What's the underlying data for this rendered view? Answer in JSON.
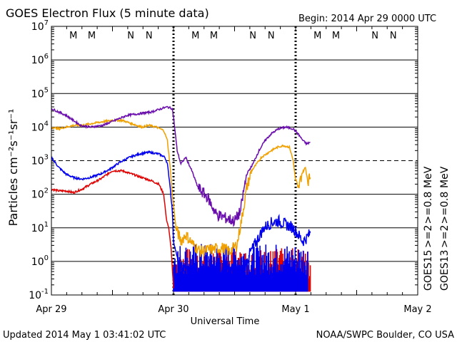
{
  "header": {
    "title": "GOES Electron Flux (5 minute data)",
    "begin": "Begin: 2014 Apr 29 0000 UTC"
  },
  "footer": {
    "updated": "Updated 2014 May  1 03:41:02 UTC",
    "credit": "NOAA/SWPC Boulder, CO USA"
  },
  "chart_data": {
    "type": "line",
    "title": "GOES Electron Flux (5 minute data)",
    "xlabel": "Universal Time",
    "ylabel": "Particles cm⁻²s⁻¹sr⁻¹",
    "yscale": "log",
    "ylim_exp": [
      -1,
      7
    ],
    "xlim_days": [
      0,
      3
    ],
    "x_ticks": [
      {
        "day": 0,
        "label": "Apr 29"
      },
      {
        "day": 1,
        "label": "Apr 30"
      },
      {
        "day": 2,
        "label": "May 1"
      },
      {
        "day": 3,
        "label": "May 2"
      }
    ],
    "y_ticks": [
      {
        "exp": 7,
        "base": "10",
        "sup": "7"
      },
      {
        "exp": 6,
        "base": "10",
        "sup": "6"
      },
      {
        "exp": 5,
        "base": "10",
        "sup": "5"
      },
      {
        "exp": 4,
        "base": "10",
        "sup": "4"
      },
      {
        "exp": 3,
        "base": "10",
        "sup": "3"
      },
      {
        "exp": 2,
        "base": "10",
        "sup": "2"
      },
      {
        "exp": 1,
        "base": "10",
        "sup": "1"
      },
      {
        "exp": 0,
        "base": "10",
        "sup": "0"
      },
      {
        "exp": -1,
        "base": "10",
        "sup": "-1"
      }
    ],
    "dashed_threshold_exp": 3,
    "day_dividers": [
      1,
      2
    ],
    "mn_markers": [
      {
        "day": 0.18,
        "label": "M",
        "color": "#e00000"
      },
      {
        "day": 0.33,
        "label": "M",
        "color": "#0000ee"
      },
      {
        "day": 0.65,
        "label": "N",
        "color": "#e00000"
      },
      {
        "day": 0.8,
        "label": "N",
        "color": "#0000ee"
      },
      {
        "day": 1.18,
        "label": "M",
        "color": "#e00000"
      },
      {
        "day": 1.33,
        "label": "M",
        "color": "#0000ee"
      },
      {
        "day": 1.65,
        "label": "N",
        "color": "#e00000"
      },
      {
        "day": 1.8,
        "label": "N",
        "color": "#0000ee"
      },
      {
        "day": 2.18,
        "label": "M",
        "color": "#e00000"
      },
      {
        "day": 2.33,
        "label": "M",
        "color": "#0000ee"
      },
      {
        "day": 2.65,
        "label": "N",
        "color": "#e00000"
      },
      {
        "day": 2.8,
        "label": "N",
        "color": "#0000ee"
      }
    ],
    "legend": {
      "goes15": "GOES15",
      "goes13": "GOES13",
      "col15": [
        {
          "text": ">=2",
          "color": "#0000ee"
        },
        {
          "text": ">=0.8",
          "color": "#6a0dad"
        },
        {
          "text": "MeV",
          "color": "#000000"
        }
      ],
      "col13": [
        {
          "text": ">=2",
          "color": "#e00000"
        },
        {
          "text": ">=0.8",
          "color": "#f0a000"
        },
        {
          "text": "MeV",
          "color": "#000000"
        }
      ]
    },
    "series": [
      {
        "name": "GOES15 >=0.8 MeV",
        "color": "#6a0dad",
        "kind": "line",
        "points": [
          [
            0,
            4.55
          ],
          [
            0.06,
            4.45
          ],
          [
            0.12,
            4.35
          ],
          [
            0.18,
            4.2
          ],
          [
            0.24,
            4.05
          ],
          [
            0.32,
            4.0
          ],
          [
            0.42,
            4.05
          ],
          [
            0.52,
            4.2
          ],
          [
            0.62,
            4.35
          ],
          [
            0.72,
            4.4
          ],
          [
            0.82,
            4.45
          ],
          [
            0.9,
            4.55
          ],
          [
            0.95,
            4.6
          ],
          [
            0.99,
            4.55
          ],
          [
            1.0,
            4.3
          ],
          [
            1.03,
            3.3
          ],
          [
            1.06,
            2.9
          ],
          [
            1.1,
            3.1
          ],
          [
            1.15,
            2.7
          ],
          [
            1.2,
            2.2
          ],
          [
            1.28,
            1.9
          ],
          [
            1.35,
            1.4
          ],
          [
            1.42,
            1.3
          ],
          [
            1.5,
            1.2
          ],
          [
            1.55,
            1.5
          ],
          [
            1.57,
            2.0
          ],
          [
            1.6,
            2.6
          ],
          [
            1.65,
            2.9
          ],
          [
            1.7,
            3.3
          ],
          [
            1.75,
            3.6
          ],
          [
            1.8,
            3.8
          ],
          [
            1.86,
            3.95
          ],
          [
            1.92,
            4.0
          ],
          [
            1.98,
            3.95
          ],
          [
            2.02,
            3.8
          ],
          [
            2.06,
            3.6
          ],
          [
            2.09,
            3.5
          ],
          [
            2.12,
            3.55
          ]
        ]
      },
      {
        "name": "GOES13 >=0.8 MeV",
        "color": "#f0a000",
        "kind": "line",
        "points": [
          [
            0,
            4.0
          ],
          [
            0.06,
            3.95
          ],
          [
            0.12,
            4.0
          ],
          [
            0.18,
            4.05
          ],
          [
            0.25,
            4.05
          ],
          [
            0.32,
            4.1
          ],
          [
            0.4,
            4.15
          ],
          [
            0.5,
            4.2
          ],
          [
            0.58,
            4.2
          ],
          [
            0.66,
            4.1
          ],
          [
            0.74,
            4.0
          ],
          [
            0.8,
            4.05
          ],
          [
            0.86,
            4.0
          ],
          [
            0.92,
            3.9
          ],
          [
            0.95,
            3.6
          ],
          [
            0.97,
            2.9
          ],
          [
            0.99,
            2.0
          ],
          [
            1.02,
            1.0
          ],
          [
            1.06,
            0.6
          ],
          [
            1.1,
            0.8
          ],
          [
            1.16,
            0.5
          ],
          [
            1.22,
            0.3
          ],
          [
            1.3,
            0.35
          ],
          [
            1.4,
            0.4
          ],
          [
            1.46,
            0.3
          ],
          [
            1.52,
            0.5
          ],
          [
            1.56,
            1.3
          ],
          [
            1.6,
            2.2
          ],
          [
            1.64,
            2.7
          ],
          [
            1.68,
            2.9
          ],
          [
            1.72,
            3.1
          ],
          [
            1.76,
            3.2
          ],
          [
            1.8,
            3.3
          ],
          [
            1.85,
            3.4
          ],
          [
            1.9,
            3.45
          ],
          [
            1.95,
            3.4
          ],
          [
            1.98,
            3.0
          ],
          [
            2.0,
            2.4
          ],
          [
            2.02,
            2.1
          ],
          [
            2.05,
            2.6
          ],
          [
            2.08,
            2.8
          ],
          [
            2.1,
            2.4
          ],
          [
            2.12,
            2.5
          ]
        ]
      },
      {
        "name": "GOES15 >=2 MeV",
        "color": "#0000ee",
        "kind": "line",
        "points": [
          [
            0,
            3.1
          ],
          [
            0.06,
            2.8
          ],
          [
            0.12,
            2.6
          ],
          [
            0.18,
            2.5
          ],
          [
            0.25,
            2.45
          ],
          [
            0.32,
            2.5
          ],
          [
            0.4,
            2.6
          ],
          [
            0.48,
            2.75
          ],
          [
            0.56,
            2.95
          ],
          [
            0.64,
            3.1
          ],
          [
            0.72,
            3.2
          ],
          [
            0.8,
            3.25
          ],
          [
            0.88,
            3.2
          ],
          [
            0.93,
            3.1
          ],
          [
            0.95,
            2.9
          ],
          [
            0.97,
            2.3
          ],
          [
            0.99,
            1.5
          ],
          [
            1.0,
            0.6
          ],
          [
            1.05,
            -0.2
          ],
          [
            1.2,
            -0.3
          ],
          [
            1.4,
            -0.3
          ],
          [
            1.58,
            -0.2
          ],
          [
            1.62,
            0.2
          ],
          [
            1.68,
            0.6
          ],
          [
            1.74,
            1.0
          ],
          [
            1.8,
            1.15
          ],
          [
            1.86,
            1.2
          ],
          [
            1.92,
            1.1
          ],
          [
            1.98,
            1.0
          ],
          [
            2.02,
            0.8
          ],
          [
            2.06,
            0.6
          ],
          [
            2.09,
            0.7
          ],
          [
            2.12,
            0.85
          ]
        ]
      },
      {
        "name": "GOES13 >=2 MeV",
        "color": "#e00000",
        "kind": "line",
        "points": [
          [
            0,
            2.15
          ],
          [
            0.06,
            2.1
          ],
          [
            0.12,
            2.1
          ],
          [
            0.18,
            2.05
          ],
          [
            0.25,
            2.15
          ],
          [
            0.32,
            2.3
          ],
          [
            0.4,
            2.45
          ],
          [
            0.5,
            2.7
          ],
          [
            0.58,
            2.7
          ],
          [
            0.66,
            2.6
          ],
          [
            0.74,
            2.5
          ],
          [
            0.82,
            2.4
          ],
          [
            0.88,
            2.3
          ],
          [
            0.92,
            2.0
          ],
          [
            0.94,
            1.3
          ],
          [
            0.96,
            1.0
          ],
          [
            0.98,
            0.4
          ],
          [
            1.0,
            -0.8
          ]
        ]
      },
      {
        "name": "GOES15 >=2 MeV spikes",
        "color": "#0000ee",
        "kind": "spikes",
        "start": 1.0,
        "end": 2.1,
        "step": 0.006,
        "base": -0.9,
        "lo": -0.4,
        "hi": 0.55
      },
      {
        "name": "GOES13 >=2 MeV spikes",
        "color": "#e00000",
        "kind": "spikes",
        "start": 1.0,
        "end": 2.12,
        "step": 0.005,
        "base": -0.9,
        "lo": -0.6,
        "hi": 0.4
      }
    ]
  }
}
